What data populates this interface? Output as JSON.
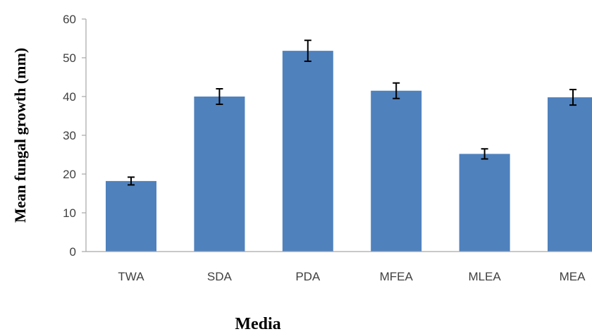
{
  "chart_data": {
    "type": "bar",
    "title": "",
    "xlabel": "Media",
    "ylabel": "Mean fungal growth (mm)",
    "categories": [
      "TWA",
      "SDA",
      "PDA",
      "MFEA",
      "MLEA",
      "MEA"
    ],
    "values": [
      18.2,
      40.0,
      51.8,
      41.5,
      25.2,
      39.8
    ],
    "errors": [
      1.0,
      2.0,
      2.7,
      2.0,
      1.3,
      2.0
    ],
    "ylim": [
      0,
      60
    ],
    "yticks": [
      "0",
      "10",
      "20",
      "30",
      "40",
      "50",
      "60"
    ],
    "grid": false,
    "legend": "none",
    "colors": {
      "bar": "#4F81BD",
      "axis": "#A6A6A6",
      "error_bar": "#000000"
    }
  }
}
